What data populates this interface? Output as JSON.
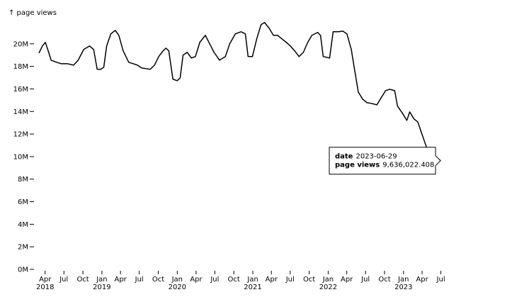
{
  "chart_data": {
    "type": "line",
    "y_label": "↑ page views",
    "color": "#000000",
    "x": [
      "2018-03-02",
      "2018-03-19",
      "2018-04-02",
      "2018-04-16",
      "2018-04-30",
      "2018-05-27",
      "2018-06-17",
      "2018-07-17",
      "2018-08-17",
      "2018-09-08",
      "2018-10-05",
      "2018-11-02",
      "2018-11-22",
      "2018-12-09",
      "2018-12-26",
      "2019-01-10",
      "2019-01-24",
      "2019-02-13",
      "2019-03-07",
      "2019-03-24",
      "2019-04-14",
      "2019-05-11",
      "2019-06-01",
      "2019-06-22",
      "2019-07-12",
      "2019-08-02",
      "2019-08-23",
      "2019-09-13",
      "2019-10-03",
      "2019-10-24",
      "2019-11-07",
      "2019-11-21",
      "2019-12-11",
      "2020-01-01",
      "2020-01-15",
      "2020-01-29",
      "2020-02-18",
      "2020-03-09",
      "2020-03-29",
      "2020-04-19",
      "2020-05-16",
      "2020-06-06",
      "2020-06-27",
      "2020-07-24",
      "2020-08-21",
      "2020-09-11",
      "2020-10-08",
      "2020-11-05",
      "2020-11-26",
      "2020-12-09",
      "2020-12-30",
      "2021-01-20",
      "2021-02-10",
      "2021-02-27",
      "2021-03-21",
      "2021-04-11",
      "2021-05-01",
      "2021-05-22",
      "2021-06-12",
      "2021-07-02",
      "2021-07-23",
      "2021-08-13",
      "2021-09-03",
      "2021-09-24",
      "2021-10-14",
      "2021-11-11",
      "2021-11-25",
      "2021-12-08",
      "2022-01-08",
      "2022-01-25",
      "2022-02-21",
      "2022-03-13",
      "2022-04-02",
      "2022-04-23",
      "2022-05-07",
      "2022-05-27",
      "2022-06-17",
      "2022-07-08",
      "2022-07-28",
      "2022-08-25",
      "2022-09-15",
      "2022-10-06",
      "2022-10-26",
      "2022-11-19",
      "2022-12-03",
      "2022-12-27",
      "2023-01-17",
      "2023-01-31",
      "2023-02-21",
      "2023-03-11",
      "2023-04-01",
      "2023-04-25",
      "2023-06-29"
    ],
    "values": [
      19180000,
      19810000,
      20130000,
      19370000,
      18550000,
      18360000,
      18240000,
      18240000,
      18110000,
      18550000,
      19500000,
      19810000,
      19500000,
      17740000,
      17740000,
      17920000,
      19810000,
      20880000,
      21190000,
      20750000,
      19370000,
      18360000,
      18240000,
      18110000,
      17860000,
      17800000,
      17740000,
      18110000,
      18870000,
      19370000,
      19620000,
      19370000,
      16860000,
      16730000,
      16980000,
      18990000,
      19250000,
      18740000,
      18870000,
      20130000,
      20750000,
      20000000,
      19250000,
      18550000,
      18870000,
      20000000,
      20880000,
      21070000,
      20880000,
      18870000,
      18870000,
      20440000,
      21700000,
      21890000,
      21380000,
      20750000,
      20750000,
      20440000,
      20130000,
      19810000,
      19370000,
      18870000,
      19250000,
      20130000,
      20750000,
      21010000,
      20750000,
      18870000,
      18740000,
      21070000,
      21070000,
      21130000,
      20880000,
      19500000,
      17920000,
      15720000,
      15090000,
      14780000,
      14720000,
      14590000,
      15220000,
      15850000,
      15970000,
      15850000,
      14470000,
      13840000,
      13210000,
      13960000,
      13330000,
      13080000,
      11950000,
      10690000,
      9636022.408
    ],
    "xlim": [
      "2018-03-02",
      "2023-06-29"
    ],
    "ylim": [
      0,
      22000000
    ],
    "yticks": [
      {
        "value": 0,
        "label": "0M"
      },
      {
        "value": 2000000,
        "label": "2M"
      },
      {
        "value": 4000000,
        "label": "4M"
      },
      {
        "value": 6000000,
        "label": "6M"
      },
      {
        "value": 8000000,
        "label": "8M"
      },
      {
        "value": 10000000,
        "label": "10M"
      },
      {
        "value": 12000000,
        "label": "12M"
      },
      {
        "value": 14000000,
        "label": "14M"
      },
      {
        "value": 16000000,
        "label": "16M"
      },
      {
        "value": 18000000,
        "label": "18M"
      },
      {
        "value": 20000000,
        "label": "20M"
      }
    ],
    "xticks": [
      {
        "value": "2018-04-01",
        "label": "Apr"
      },
      {
        "value": "2018-07-01",
        "label": "Jul"
      },
      {
        "value": "2018-10-01",
        "label": "Oct"
      },
      {
        "value": "2019-01-01",
        "label": "Jan"
      },
      {
        "value": "2019-04-01",
        "label": "Apr"
      },
      {
        "value": "2019-07-01",
        "label": "Jul"
      },
      {
        "value": "2019-10-01",
        "label": "Oct"
      },
      {
        "value": "2020-01-01",
        "label": "Jan"
      },
      {
        "value": "2020-04-01",
        "label": "Apr"
      },
      {
        "value": "2020-07-01",
        "label": "Jul"
      },
      {
        "value": "2020-10-01",
        "label": "Oct"
      },
      {
        "value": "2021-01-01",
        "label": "Jan"
      },
      {
        "value": "2021-04-01",
        "label": "Apr"
      },
      {
        "value": "2021-07-01",
        "label": "Jul"
      },
      {
        "value": "2021-10-01",
        "label": "Oct"
      },
      {
        "value": "2022-01-01",
        "label": "Jan"
      },
      {
        "value": "2022-04-01",
        "label": "Apr"
      },
      {
        "value": "2022-07-01",
        "label": "Jul"
      },
      {
        "value": "2022-10-01",
        "label": "Oct"
      },
      {
        "value": "2023-01-01",
        "label": "Jan"
      },
      {
        "value": "2023-04-01",
        "label": "Apr"
      },
      {
        "value": "2023-07-01",
        "label": "Jul"
      }
    ],
    "xtick_years": [
      {
        "value": "2018-04-01",
        "label": "2018"
      },
      {
        "value": "2019-01-01",
        "label": "2019"
      },
      {
        "value": "2020-01-01",
        "label": "2020"
      },
      {
        "value": "2021-01-01",
        "label": "2021"
      },
      {
        "value": "2022-01-01",
        "label": "2022"
      },
      {
        "value": "2023-01-01",
        "label": "2023"
      }
    ],
    "tooltip": {
      "date_label": "date",
      "date": "2023-06-29",
      "value_label": "page views",
      "value": "9,636,022.408"
    }
  }
}
